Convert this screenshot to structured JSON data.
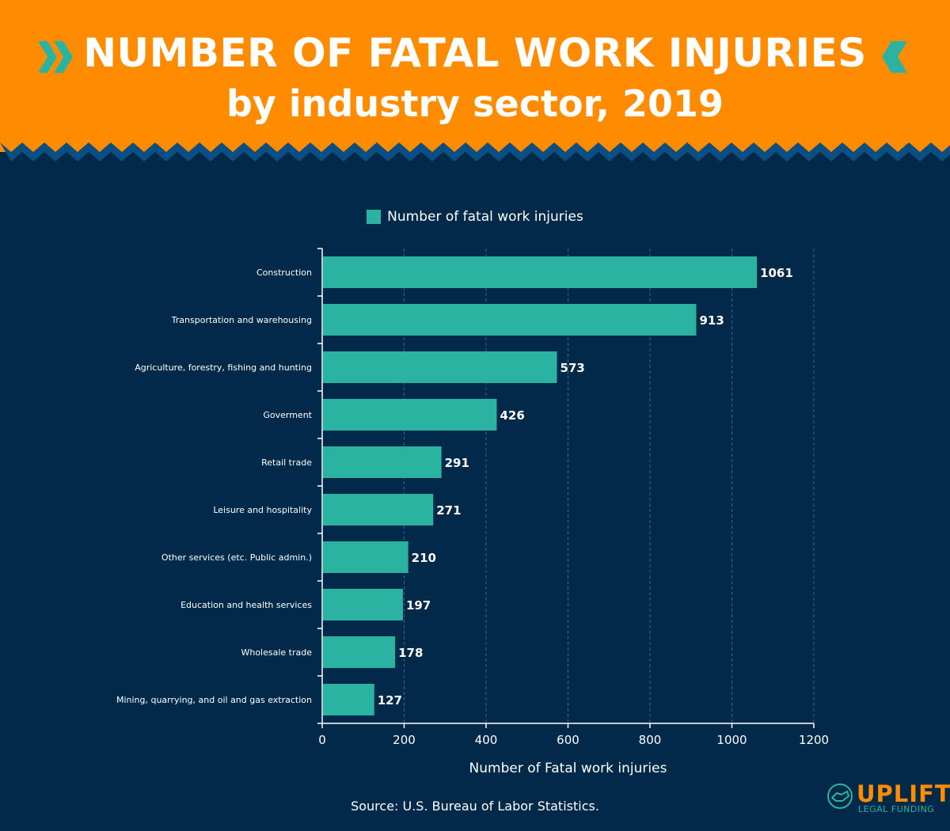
{
  "header": {
    "title": "NUMBER OF FATAL WORK INJURIES",
    "subtitle": "by industry sector, 2019"
  },
  "icons": {
    "left": "double-chevron-right-icon",
    "right": "double-chevron-left-icon",
    "logo": "handshake-icon"
  },
  "colors": {
    "header_bg": "#ff8c00",
    "page_bg": "#012a4a",
    "bar": "#2ab3a0",
    "zigzag": "#0b4f82"
  },
  "chart_data": {
    "type": "bar",
    "orientation": "horizontal",
    "categories": [
      "Construction",
      "Transportation and warehousing",
      "Agriculture, forestry, fishing and hunting",
      "Goverment",
      "Retail trade",
      "Leisure and hospitality",
      "Other services (etc. Public admin.)",
      "Education and health services",
      "Wholesale trade",
      "Mining, quarrying, and oil and gas extraction"
    ],
    "series": [
      {
        "name": "Number of fatal work injuries",
        "values": [
          1061,
          913,
          573,
          426,
          291,
          271,
          210,
          197,
          178,
          127
        ]
      }
    ],
    "xlabel": "Number of Fatal work injuries",
    "ylabel": "",
    "xlim": [
      0,
      1200
    ],
    "xticks": [
      0,
      200,
      400,
      600,
      800,
      1000,
      1200
    ],
    "grid": "vertical-dashed",
    "legend": "top-center"
  },
  "footer": {
    "source": "Source: U.S. Bureau of Labor Statistics."
  },
  "logo": {
    "word": "UPLIFT",
    "sub": "LEGAL FUNDING"
  }
}
